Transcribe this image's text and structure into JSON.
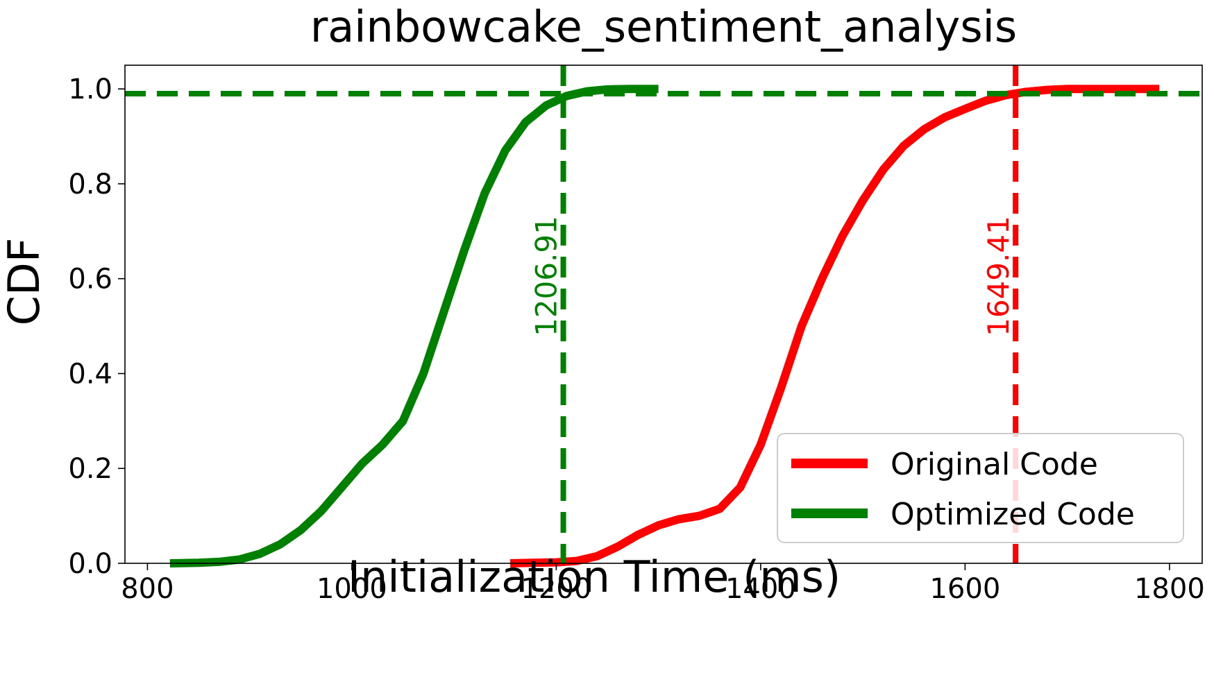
{
  "chart_data": {
    "type": "line",
    "title": "rainbowcake_sentiment_analysis",
    "xlabel": "Initialization Time (ms)",
    "ylabel": "CDF",
    "xlim": [
      778,
      1832
    ],
    "ylim": [
      0,
      1.05
    ],
    "xticks": [
      800,
      1000,
      1200,
      1400,
      1600,
      1800
    ],
    "yticks": [
      0.0,
      0.2,
      0.4,
      0.6,
      0.8,
      1.0
    ],
    "xtick_labels": [
      "800",
      "1000",
      "1200",
      "1400",
      "1600",
      "1800"
    ],
    "ytick_labels": [
      "0.0",
      "0.2",
      "0.4",
      "0.6",
      "0.8",
      "1.0"
    ],
    "grid": false,
    "legend_position": "lower-right",
    "series": [
      {
        "name": "Original Code",
        "color": "#ff0000",
        "x": [
          1155,
          1200,
          1220,
          1240,
          1260,
          1280,
          1300,
          1320,
          1340,
          1360,
          1380,
          1400,
          1420,
          1440,
          1460,
          1480,
          1500,
          1520,
          1540,
          1560,
          1580,
          1600,
          1620,
          1640,
          1660,
          1680,
          1700,
          1720,
          1750,
          1790
        ],
        "y": [
          0.0,
          0.002,
          0.005,
          0.015,
          0.035,
          0.06,
          0.08,
          0.093,
          0.1,
          0.115,
          0.16,
          0.25,
          0.37,
          0.5,
          0.6,
          0.69,
          0.765,
          0.83,
          0.88,
          0.915,
          0.94,
          0.958,
          0.975,
          0.987,
          0.994,
          0.998,
          1.0,
          1.0,
          1.0,
          1.0
        ]
      },
      {
        "name": "Optimized Code",
        "color": "#008000",
        "x": [
          822,
          850,
          870,
          890,
          910,
          930,
          950,
          970,
          990,
          1010,
          1030,
          1050,
          1070,
          1090,
          1110,
          1130,
          1150,
          1170,
          1190,
          1210,
          1230,
          1250,
          1270,
          1300
        ],
        "y": [
          0.0,
          0.001,
          0.003,
          0.008,
          0.02,
          0.04,
          0.07,
          0.11,
          0.16,
          0.21,
          0.25,
          0.3,
          0.4,
          0.53,
          0.66,
          0.78,
          0.87,
          0.93,
          0.965,
          0.985,
          0.995,
          0.999,
          1.0,
          1.0
        ]
      }
    ],
    "reference_lines": {
      "horizontal": {
        "y": 0.99,
        "color": "#008000"
      },
      "vertical": [
        {
          "x": 1206.91,
          "label": "1206.91",
          "color": "#008000"
        },
        {
          "x": 1649.41,
          "label": "1649.41",
          "color": "#ff0000"
        }
      ]
    }
  }
}
